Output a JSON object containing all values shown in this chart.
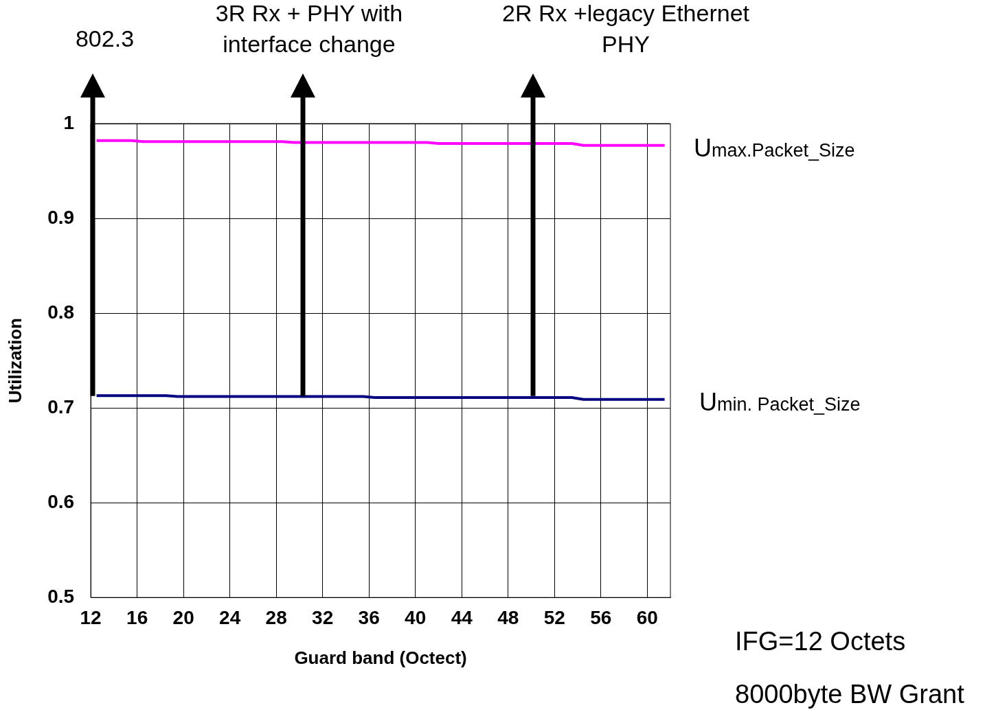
{
  "chart_data": {
    "type": "line",
    "xlabel": "Guard band (Octect)",
    "ylabel": "Utilization",
    "x": [
      12.5,
      15.5,
      16.5,
      28.5,
      29.5,
      41,
      42,
      53.5,
      54.5,
      61.5
    ],
    "series": [
      {
        "name": "Umax.Packet_Size",
        "color": "#ff00ff",
        "values": [
          0.982,
          0.982,
          0.981,
          0.981,
          0.98,
          0.98,
          0.979,
          0.979,
          0.977,
          0.977
        ]
      },
      {
        "name": "Umin. Packet_Size",
        "color": "#000080",
        "x": [
          12.5,
          18.5,
          19.5,
          35.5,
          36.5,
          53.5,
          54.5,
          61.5
        ],
        "values": [
          0.713,
          0.713,
          0.712,
          0.712,
          0.711,
          0.711,
          0.709,
          0.709
        ]
      }
    ],
    "xlim": [
      12,
      62
    ],
    "xticks": [
      12,
      16,
      20,
      24,
      28,
      32,
      36,
      40,
      44,
      48,
      52,
      56,
      60
    ],
    "ylim": [
      0.5,
      1
    ],
    "yticks": [
      {
        "value": 0.5,
        "label": "0.5"
      },
      {
        "value": 0.6,
        "label": "0.6"
      },
      {
        "value": 0.7,
        "label": "0.7"
      },
      {
        "value": 0.8,
        "label": "0.8"
      },
      {
        "value": 0.9,
        "label": "0.9"
      },
      {
        "value": 1,
        "label": "1"
      }
    ],
    "grid": true,
    "marker": "none",
    "line_style": "solid",
    "annotations": [
      "802.3",
      "3R Rx + PHY with\ninterface change",
      "2R Rx +legacy Ethernet\nPHY",
      "IFG=12 Octets",
      "8000byte BW Grant"
    ]
  }
}
